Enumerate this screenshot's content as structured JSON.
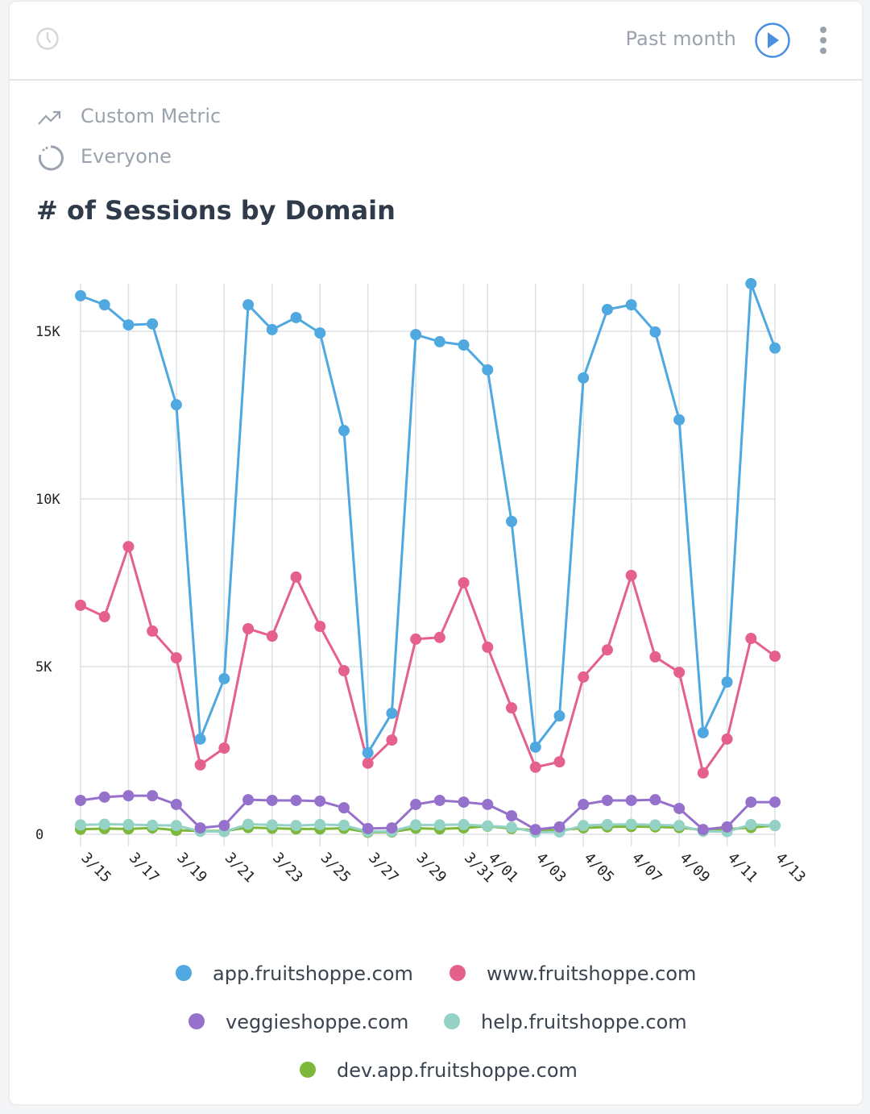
{
  "header": {
    "range_label": "Past month",
    "icons": [
      "clock-icon",
      "play-icon",
      "more-vertical-icon"
    ],
    "accent": "#4a90e2"
  },
  "meta": {
    "metric": "Custom Metric",
    "segment": "Everyone",
    "icons": [
      "trending-up-icon",
      "segment-circle-icon"
    ]
  },
  "chart_data": {
    "type": "line",
    "title": "# of Sessions by Domain",
    "xlabel": "",
    "ylabel": "",
    "ylim": [
      0,
      16500
    ],
    "grid": true,
    "legend_position": "bottom",
    "yticks": [
      {
        "value": 0,
        "label": "0"
      },
      {
        "value": 5000,
        "label": "5K"
      },
      {
        "value": 10000,
        "label": "10K"
      },
      {
        "value": 15000,
        "label": "15K"
      }
    ],
    "categories": [
      "3/15",
      "3/16",
      "3/17",
      "3/18",
      "3/19",
      "3/20",
      "3/21",
      "3/22",
      "3/23",
      "3/24",
      "3/25",
      "3/26",
      "3/27",
      "3/28",
      "3/29",
      "3/30",
      "3/31",
      "4/01",
      "4/02",
      "4/03",
      "4/04",
      "4/05",
      "4/06",
      "4/07",
      "4/08",
      "4/09",
      "4/10",
      "4/11",
      "4/12",
      "4/13"
    ],
    "xticks": [
      "3/15",
      "3/17",
      "3/19",
      "3/21",
      "3/23",
      "3/25",
      "3/27",
      "3/29",
      "3/31",
      "4/01",
      "4/03",
      "4/05",
      "4/07",
      "4/09",
      "4/11",
      "4/13"
    ],
    "series": [
      {
        "name": "app.fruitshoppe.com",
        "color": "#4fa8e0",
        "values": [
          16060,
          15790,
          15190,
          15220,
          12810,
          2840,
          4640,
          15790,
          15050,
          15410,
          14950,
          12040,
          2430,
          3610,
          14900,
          14690,
          14590,
          13850,
          9330,
          2600,
          3530,
          13610,
          15650,
          15790,
          14980,
          12360,
          3030,
          4540,
          16420,
          14500
        ]
      },
      {
        "name": "www.fruitshoppe.com",
        "color": "#e5608a",
        "values": [
          6830,
          6490,
          8580,
          6060,
          5260,
          2070,
          2570,
          6130,
          5910,
          7670,
          6200,
          4880,
          2120,
          2810,
          5820,
          5870,
          7500,
          5580,
          3770,
          2000,
          2160,
          4690,
          5500,
          7720,
          5290,
          4830,
          1830,
          2840,
          5840,
          5310
        ]
      },
      {
        "name": "veggieshoppe.com",
        "color": "#9671cc",
        "values": [
          1010,
          1110,
          1150,
          1150,
          890,
          190,
          260,
          1030,
          1010,
          1010,
          990,
          790,
          170,
          190,
          890,
          1010,
          960,
          890,
          550,
          140,
          220,
          890,
          1010,
          1010,
          1030,
          770,
          140,
          220,
          960,
          960
        ]
      },
      {
        "name": "help.fruitshoppe.com",
        "color": "#94d2c5",
        "values": [
          280,
          300,
          290,
          270,
          260,
          90,
          80,
          300,
          280,
          260,
          290,
          270,
          80,
          90,
          280,
          280,
          290,
          250,
          210,
          60,
          70,
          260,
          290,
          300,
          280,
          260,
          90,
          80,
          290,
          260
        ]
      },
      {
        "name": "dev.app.fruitshoppe.com",
        "color": "#7db83a",
        "values": [
          150,
          170,
          160,
          190,
          120,
          100,
          100,
          200,
          180,
          160,
          160,
          180,
          60,
          70,
          180,
          160,
          190,
          240,
          170,
          120,
          120,
          190,
          220,
          230,
          220,
          200,
          130,
          150,
          200,
          260
        ]
      }
    ]
  }
}
